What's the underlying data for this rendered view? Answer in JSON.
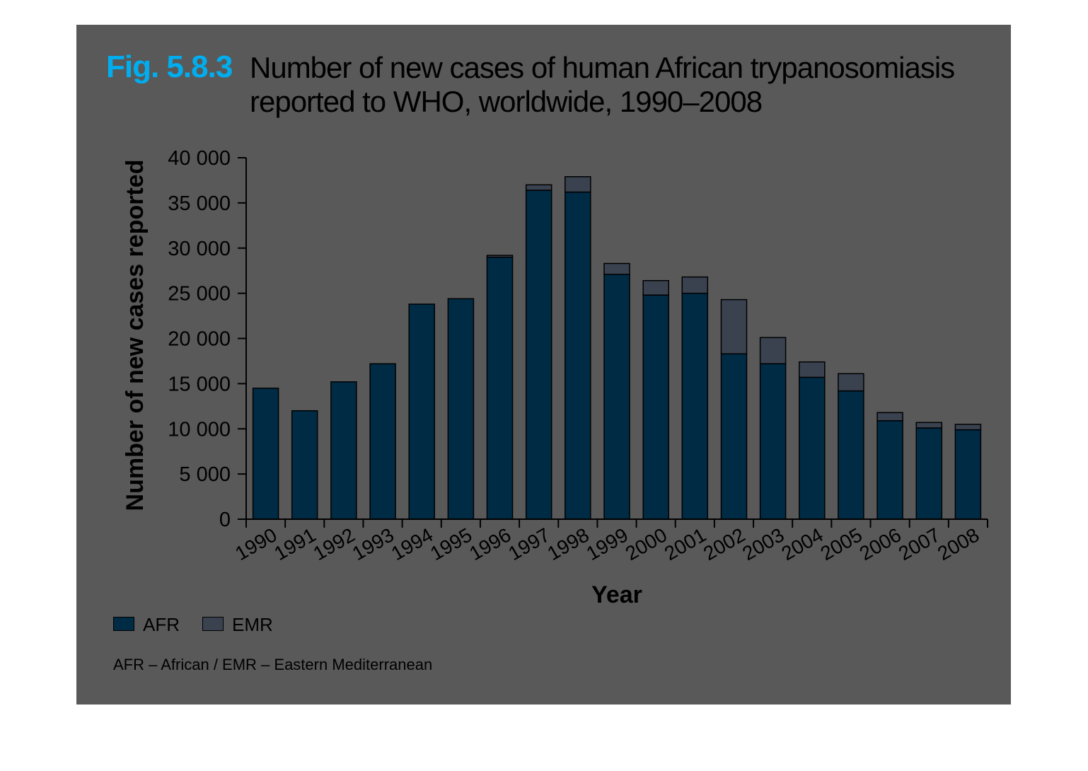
{
  "title": {
    "number": "Fig. 5.8.3",
    "text": "Number of new cases of human African trypanosomiasis reported to WHO, worldwide, 1990–2008"
  },
  "legend": [
    {
      "label": "AFR",
      "color": "#002b45"
    },
    {
      "label": "EMR",
      "color": "#3a4250"
    }
  ],
  "footnote": "AFR – African / EMR – Eastern Mediterranean",
  "chart_data": {
    "type": "bar",
    "stacked": true,
    "categories": [
      "1990",
      "1991",
      "1992",
      "1993",
      "1994",
      "1995",
      "1996",
      "1997",
      "1998",
      "1999",
      "2000",
      "2001",
      "2002",
      "2003",
      "2004",
      "2005",
      "2006",
      "2007",
      "2008"
    ],
    "series": [
      {
        "name": "AFR",
        "color": "#002b45",
        "values": [
          14500,
          12000,
          15200,
          17200,
          23800,
          24400,
          29000,
          36400,
          36200,
          27100,
          24800,
          25000,
          18300,
          17200,
          15700,
          14200,
          10900,
          10100,
          9900
        ]
      },
      {
        "name": "EMR",
        "color": "#3a4250",
        "values": [
          0,
          0,
          0,
          0,
          0,
          0,
          200,
          600,
          1700,
          1200,
          1600,
          1800,
          6000,
          2900,
          1700,
          1900,
          900,
          600,
          600
        ]
      }
    ],
    "ylim": [
      0,
      40000
    ],
    "yticks": [
      0,
      5000,
      10000,
      15000,
      20000,
      25000,
      30000,
      35000,
      40000
    ],
    "ytick_labels": [
      "0",
      "5 000",
      "10 000",
      "15 000",
      "20 000",
      "25 000",
      "30 000",
      "35 000",
      "40 000"
    ],
    "xlabel": "Year",
    "ylabel": "Number of new cases reported",
    "legend_position": "bottom-left",
    "grid": false
  }
}
